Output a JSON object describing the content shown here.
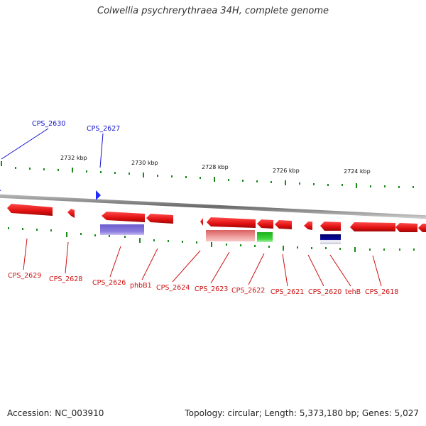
{
  "title": "Colwellia psychrerythraea 34H, complete genome",
  "footer": {
    "accession": "Accession: NC_003910",
    "summary": "Topology: circular; Length: 5,373,180 bp; Genes: 5,027"
  },
  "colors": {
    "gene_red": "#e82020",
    "gene_red_light": "#e89090",
    "gene_blue": "#1f2cff",
    "feature_purple": "#7b6ad6",
    "feature_green": "#2ec82e",
    "feature_navy": "#0a0a80",
    "tick_green": "#1a8a1a",
    "backbone": "#8a8a8a"
  },
  "kbp_labels": [
    "2732 kbp",
    "2730 kbp",
    "2728 kbp",
    "2726 kbp",
    "2724 kbp"
  ],
  "blue_labels": [
    "CPS_2630",
    "CPS_2627"
  ],
  "red_labels": [
    "CPS_2629",
    "CPS_2628",
    "CPS_2626",
    "phbB1",
    "CPS_2624",
    "CPS_2623",
    "CPS_2622",
    "CPS_2621",
    "CPS_2620",
    "tehB",
    "CPS_2618"
  ]
}
